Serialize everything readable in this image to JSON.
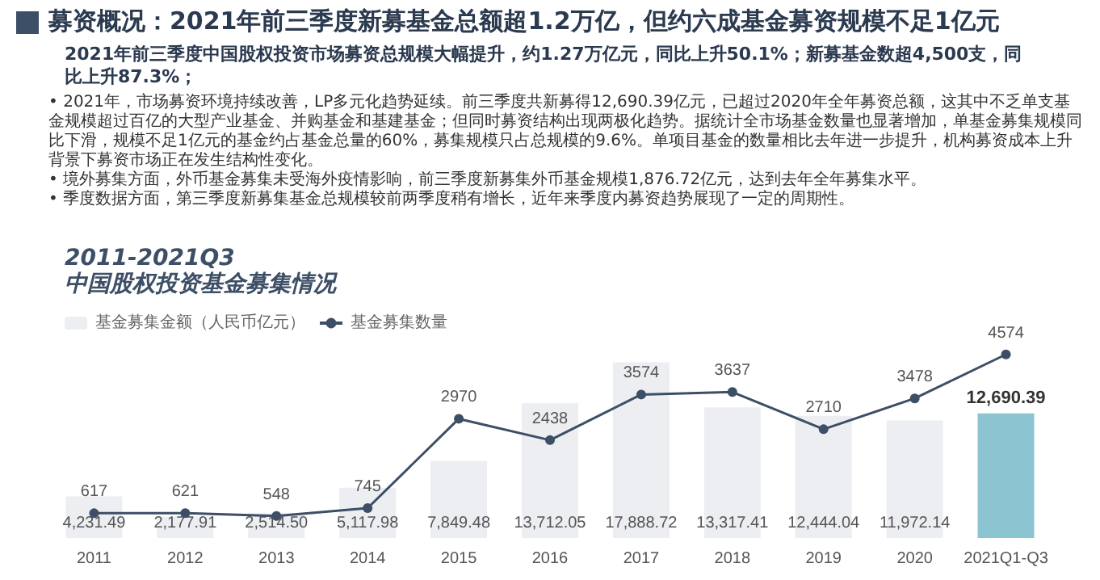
{
  "chart_data": {
    "type": "bar",
    "title": "募资概况：2021年前三季度新募基金总额超1.2万亿，但约六成基金募资规模不足1亿元",
    "subtitle": "2011-2021Q3\n中国股权投资基金募集情况",
    "annotations": [
      "2021年前三季度中国股权投资市场募资总规模大幅提升，约1.27万亿元，同比上升50.1%；新募基金数超4,500支，同比上升87.3%；",
      "• 2021年，市场募资环境持续改善，LP多元化趋势延续。前三季度共新募得12,690.39亿元，已超过2020年全年募资总额，这其中不乏单支基金规模超过百亿的大型产业基金、并购基金和基建基金；但同时募资结构出现两极化趋势。据统计全市场基金数量也显著增加，单基金募集规模同比下滑，规模不足1亿元的基金约占基金总量的60%，募集规模只占总规模的9.6%。单项目基金的数量相比去年进一步提升，机构募资成本上升背景下募资市场正在发生结构性变化。",
      "• 境外募集方面，外币基金募集未受海外疫情影响，前三季度新募集外币基金规模1,876.72亿元，达到去年全年募集水平。",
      "• 季度数据方面，第三季度新募集基金总规模较前两季度稍有增长，近年来季度内募资趋势展现了一定的周期性。"
    ],
    "categories": [
      "2011",
      "2012",
      "2013",
      "2014",
      "2015",
      "2016",
      "2017",
      "2018",
      "2019",
      "2020",
      "2021Q1-Q3"
    ],
    "series": [
      {
        "name": "基金募集金额（人民币亿元）",
        "color": "#eceef2",
        "colors": [
          "#eceef2",
          "#eceef2",
          "#eceef2",
          "#eceef2",
          "#eceef2",
          "#eceef2",
          "#eceef2",
          "#eceef2",
          "#eceef2",
          "#eceef2",
          "#8cc4d2"
        ],
        "values": [
          4231.49,
          2177.91,
          2514.5,
          5117.98,
          7849.48,
          13712.05,
          17888.72,
          13317.41,
          12444.04,
          11972.14,
          12690.39
        ],
        "value_labels": [
          "4,231.49",
          "2,177.91",
          "2,514.50",
          "5,117.98",
          "7,849.48",
          "13,712.05",
          "17,888.72",
          "13,317.41",
          "12,444.04",
          "11,972.14",
          "12,690.39"
        ]
      },
      {
        "name": "基金募集数量",
        "type": "line",
        "axis": "y2",
        "color": "#3d4f66",
        "values": [
          617,
          621,
          548,
          745,
          2970,
          2438,
          3574,
          3637,
          2710,
          3478,
          4574
        ],
        "value_labels": [
          "617",
          "621",
          "548",
          "745",
          "2970",
          "2438",
          "3574",
          "3637",
          "2710",
          "3478",
          "4574"
        ]
      }
    ],
    "legend": "top left",
    "marker": "circle"
  }
}
